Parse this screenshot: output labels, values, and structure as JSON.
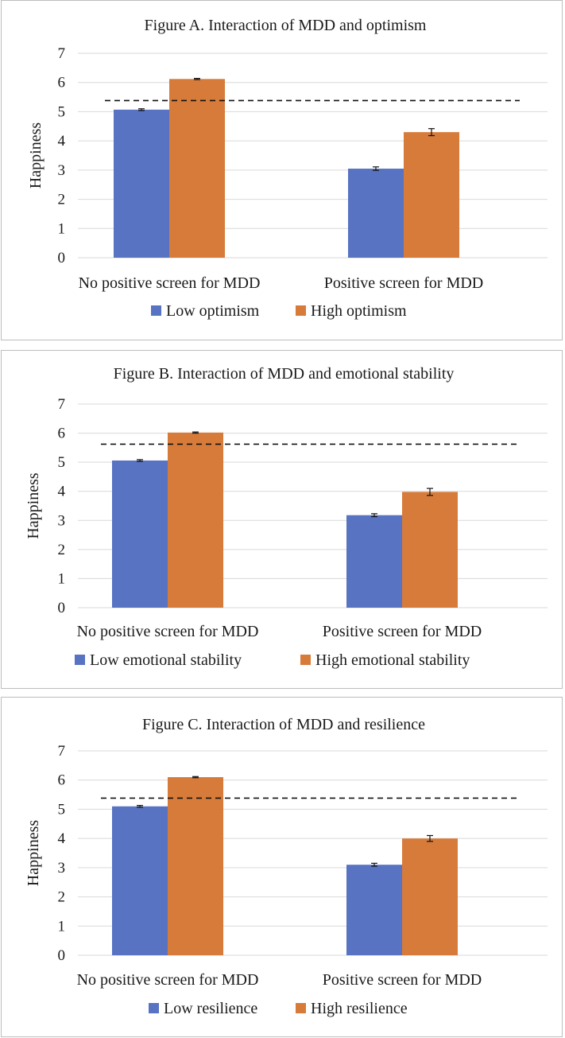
{
  "colors": {
    "low": "#5873c2",
    "high": "#d77b3a",
    "grid": "#d9d9d9",
    "reference": "#111111"
  },
  "chart_data": [
    {
      "type": "bar",
      "title": "Figure A. Interaction of MDD and optimism",
      "xlabel": "",
      "ylabel": "Happiness",
      "ylim": [
        0,
        7
      ],
      "yticks": [
        "0",
        "1",
        "2",
        "3",
        "4",
        "5",
        "6",
        "7"
      ],
      "grid": true,
      "legend_position": "bottom",
      "categories": [
        "No positive screen for MDD",
        "Positive screen for MDD"
      ],
      "series": [
        {
          "name": "Low optimism",
          "values": [
            5.07,
            3.05
          ],
          "errors": [
            0.03,
            0.06
          ]
        },
        {
          "name": "High optimism",
          "values": [
            6.12,
            4.3
          ],
          "errors": [
            0.02,
            0.12
          ]
        }
      ],
      "reference_line": 5.38
    },
    {
      "type": "bar",
      "title": "Figure B. Interaction of MDD and emotional stability",
      "xlabel": "",
      "ylabel": "Happiness",
      "ylim": [
        0,
        7
      ],
      "yticks": [
        "0",
        "1",
        "2",
        "3",
        "4",
        "5",
        "6",
        "7"
      ],
      "grid": true,
      "legend_position": "bottom",
      "categories": [
        "No positive screen for MDD",
        "Positive screen for MDD"
      ],
      "series": [
        {
          "name": "Low emotional stability",
          "values": [
            5.06,
            3.18
          ],
          "errors": [
            0.03,
            0.05
          ]
        },
        {
          "name": "High emotional stability",
          "values": [
            6.02,
            3.98
          ],
          "errors": [
            0.02,
            0.12
          ]
        }
      ],
      "reference_line": 5.62
    },
    {
      "type": "bar",
      "title": "Figure C. Interaction of MDD and resilience",
      "xlabel": "",
      "ylabel": "Happiness",
      "ylim": [
        0,
        7
      ],
      "yticks": [
        "0",
        "1",
        "2",
        "3",
        "4",
        "5",
        "6",
        "7"
      ],
      "grid": true,
      "legend_position": "bottom",
      "categories": [
        "No positive screen for MDD",
        "Positive screen for MDD"
      ],
      "series": [
        {
          "name": "Low resilience",
          "values": [
            5.1,
            3.1
          ],
          "errors": [
            0.03,
            0.05
          ]
        },
        {
          "name": "High resilience",
          "values": [
            6.1,
            4.0
          ],
          "errors": [
            0.02,
            0.1
          ]
        }
      ],
      "reference_line": 5.38
    }
  ]
}
